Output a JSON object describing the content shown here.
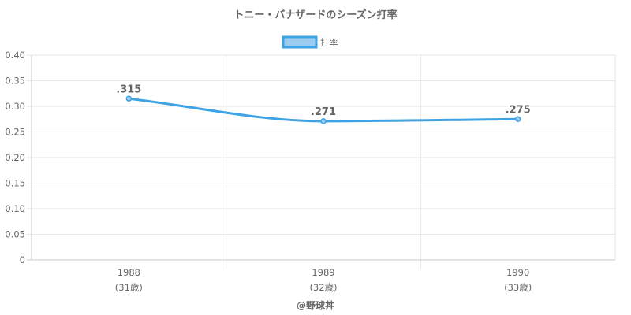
{
  "chart_data": {
    "type": "line",
    "title": "トニー・バナザードのシーズン打率",
    "legend": {
      "position": "top",
      "label": "打率"
    },
    "categories": [
      "1988",
      "1989",
      "1990"
    ],
    "category_sublabels": [
      "(31歳)",
      "(32歳)",
      "(33歳)"
    ],
    "series": [
      {
        "name": "打率",
        "values": [
          0.315,
          0.271,
          0.275
        ],
        "labels": [
          ".315",
          ".271",
          ".275"
        ]
      }
    ],
    "ylim": [
      0,
      0.4
    ],
    "yticks": [
      "0.40",
      "0.35",
      "0.30",
      "0.25",
      "0.20",
      "0.15",
      "0.10",
      "0.05",
      "0"
    ],
    "grid": true,
    "colors": {
      "line": "#3ea3e4",
      "fill": "#9ccbf0",
      "grid": "#e6e6e6",
      "axis": "#c8c8c8",
      "text": "#666666"
    }
  },
  "credit": "@野球丼"
}
